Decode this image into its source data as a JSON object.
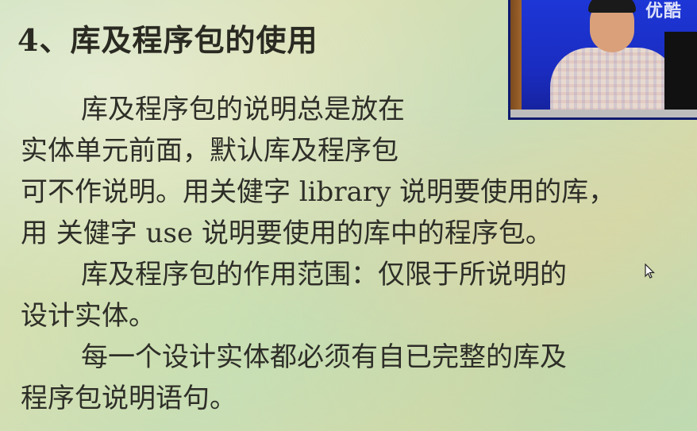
{
  "slide": {
    "title": "4、库及程序包的使用",
    "lines": [
      "库及程序包的说明总是放在",
      "实体单元前面，默认库及程序包",
      "可不作说明。用关健字 library 说明要使用的库，",
      "用 关健字 use 说明要使用的库中的程序包。",
      "库及程序包的作用范围：仅限于所说明的",
      "设计实体。",
      "每一个设计实体都必须有自已完整的库及",
      "程序包说明语句。"
    ]
  },
  "video": {
    "logo": "优酷"
  },
  "colors": {
    "text": "#2e2e28",
    "video_background": "#1a2fc8"
  }
}
